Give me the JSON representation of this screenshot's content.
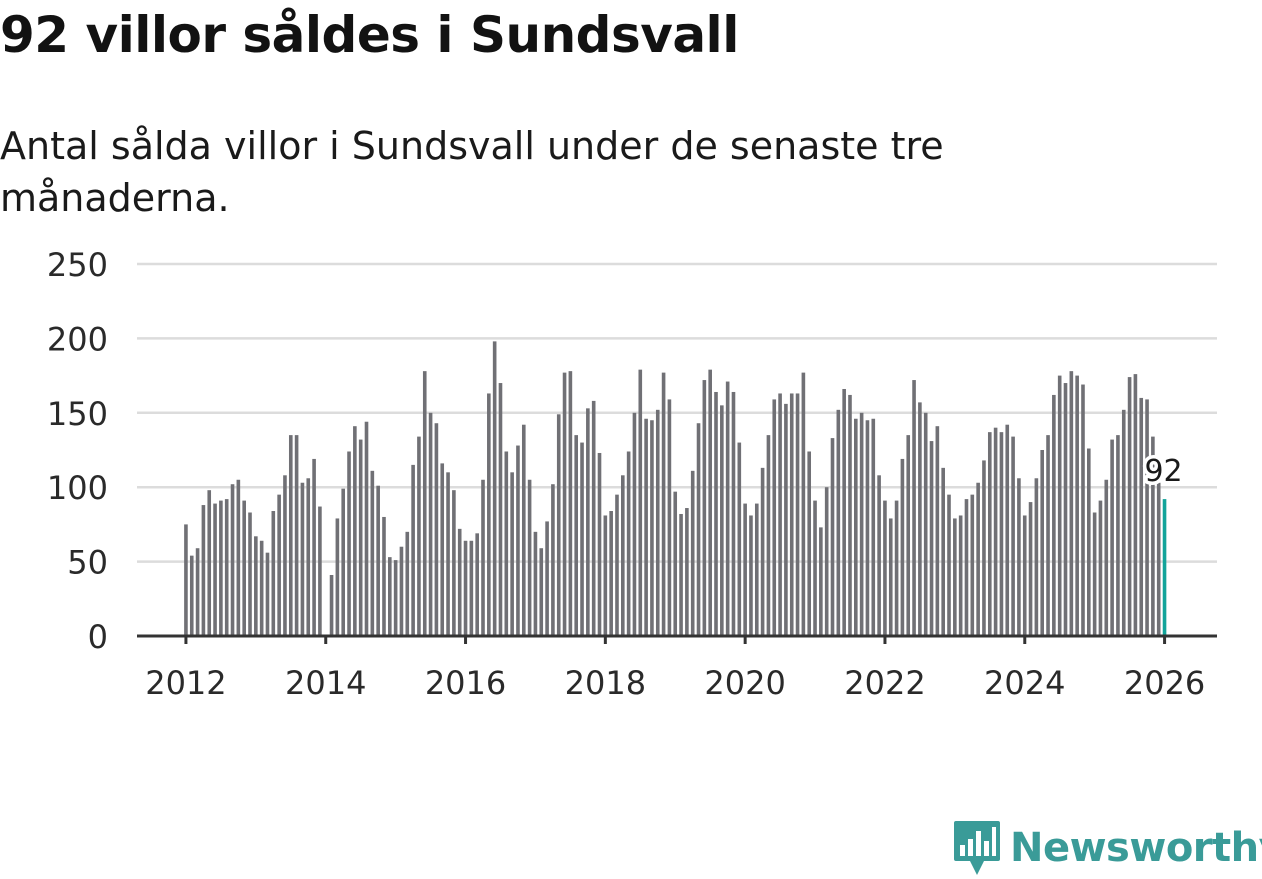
{
  "title": "92 villor såldes i Sundsvall",
  "subtitle": "Antal sålda villor i Sundsvall under de senaste tre månaderna.",
  "brand": {
    "name": "Newsworthy",
    "icon": "newsworthy-bars-icon"
  },
  "colors": {
    "bar": "#707075",
    "highlight": "#12a49a",
    "grid": "#dcdcdc",
    "axis": "#333333",
    "brand": "#3a9b98"
  },
  "chart_data": {
    "type": "bar",
    "title": "",
    "xlabel": "",
    "ylabel": "",
    "x_start": 2012.0,
    "x_step": 0.08333,
    "xlim": [
      2011.3,
      2026.75
    ],
    "ylim": [
      0,
      250
    ],
    "yticks": [
      0,
      50,
      100,
      150,
      200,
      250
    ],
    "xticks": [
      2012,
      2014,
      2016,
      2018,
      2020,
      2022,
      2024,
      2026
    ],
    "grid": true,
    "values": [
      75,
      54,
      59,
      88,
      98,
      89,
      91,
      92,
      102,
      105,
      91,
      83,
      67,
      64,
      56,
      84,
      95,
      108,
      135,
      135,
      103,
      106,
      119,
      87,
      0,
      41,
      79,
      99,
      124,
      141,
      132,
      144,
      111,
      101,
      80,
      53,
      51,
      60,
      70,
      115,
      134,
      178,
      150,
      143,
      116,
      110,
      98,
      72,
      64,
      64,
      69,
      105,
      163,
      198,
      170,
      124,
      110,
      128,
      142,
      105,
      70,
      59,
      77,
      102,
      149,
      177,
      178,
      135,
      130,
      153,
      158,
      123,
      81,
      84,
      95,
      108,
      124,
      150,
      179,
      146,
      145,
      152,
      177,
      159,
      97,
      82,
      86,
      111,
      143,
      172,
      179,
      164,
      155,
      171,
      164,
      130,
      89,
      81,
      89,
      113,
      135,
      159,
      163,
      156,
      163,
      163,
      177,
      124,
      91,
      73,
      100,
      133,
      152,
      166,
      162,
      146,
      150,
      145,
      146,
      108,
      91,
      79,
      91,
      119,
      135,
      172,
      157,
      150,
      131,
      141,
      113,
      95,
      79,
      81,
      92,
      95,
      103,
      118,
      137,
      140,
      137,
      142,
      134,
      106,
      81,
      90,
      106,
      125,
      135,
      162,
      175,
      170,
      178,
      175,
      169,
      126,
      83,
      91,
      105,
      132,
      135,
      152,
      174,
      176,
      160,
      159,
      134,
      103,
      92
    ],
    "highlight": {
      "index": 168,
      "label": "92"
    }
  }
}
